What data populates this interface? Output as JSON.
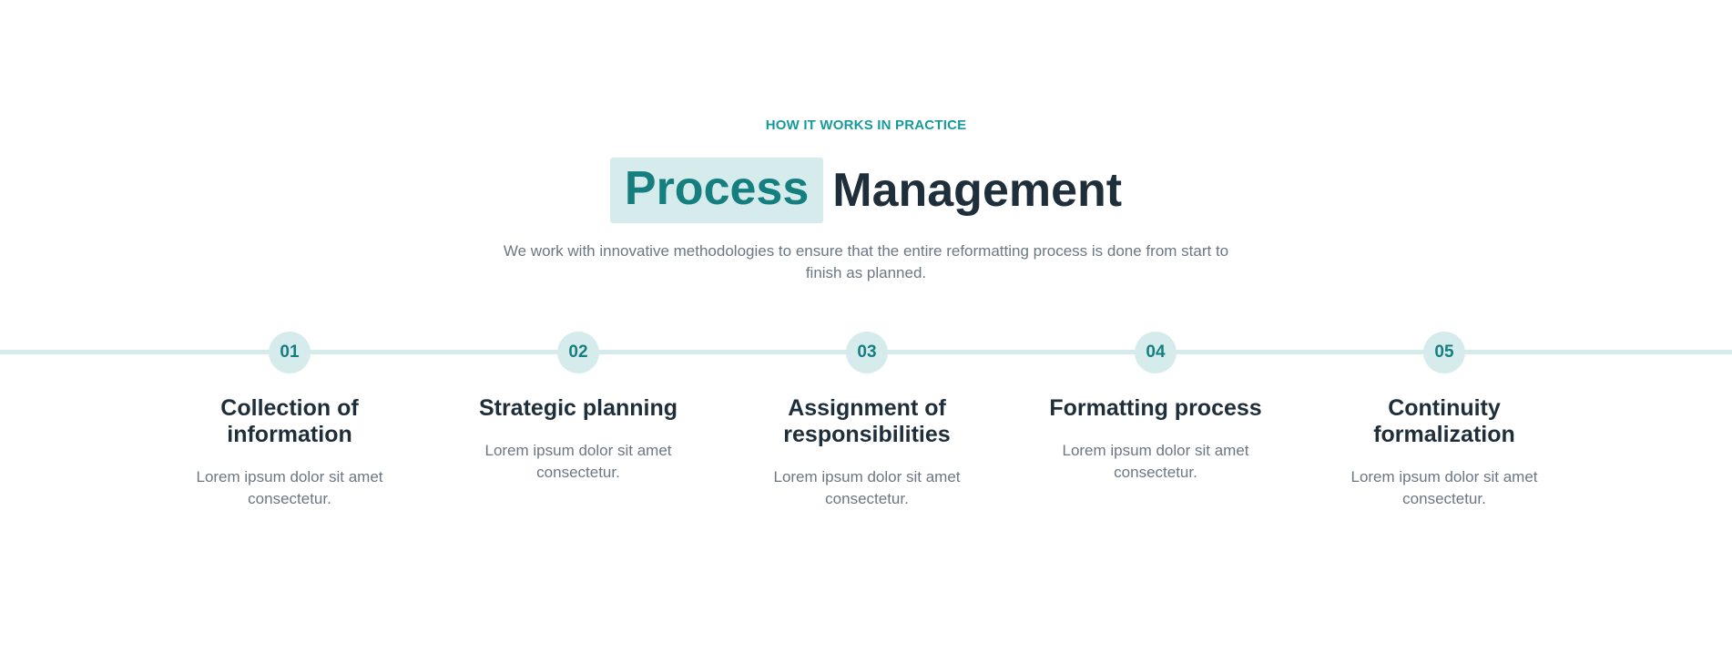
{
  "section": {
    "eyebrow": "HOW IT WORKS IN PRACTICE",
    "title_highlight": "Process",
    "title_rest": "Management",
    "lead": "We work with innovative methodologies to ensure that the entire reformatting process is done from start to finish as planned."
  },
  "steps": [
    {
      "number": "01",
      "title": "Collection of information",
      "desc": "Lorem ipsum dolor sit amet consectetur."
    },
    {
      "number": "02",
      "title": "Strategic planning",
      "desc": "Lorem ipsum dolor sit amet consectetur."
    },
    {
      "number": "03",
      "title": "Assignment of responsibilities",
      "desc": "Lorem ipsum dolor sit amet consectetur."
    },
    {
      "number": "04",
      "title": "Formatting process",
      "desc": "Lorem ipsum dolor sit amet consectetur."
    },
    {
      "number": "05",
      "title": "Continuity formalization",
      "desc": "Lorem ipsum dolor sit amet consectetur."
    }
  ],
  "colors": {
    "accent": "#179a9c",
    "accent_dark": "#157f80",
    "accent_soft": "#d6ecec",
    "heading": "#1f2e3b",
    "body_text": "#6b7784"
  }
}
